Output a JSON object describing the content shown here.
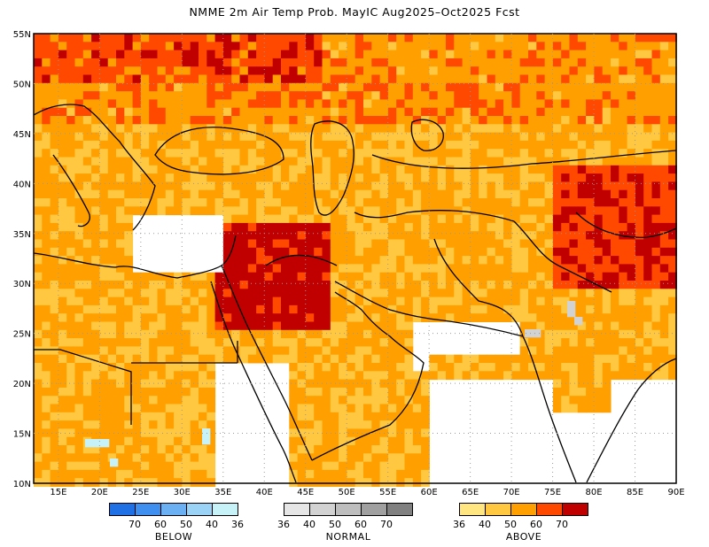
{
  "title": "NMME  2m  Air  Temp  Prob.  MayIC    Aug2025–Oct2025  Fcst",
  "axes": {
    "lon_labels": [
      "15E",
      "20E",
      "25E",
      "30E",
      "35E",
      "40E",
      "45E",
      "50E",
      "55E",
      "60E",
      "65E",
      "70E",
      "75E",
      "80E",
      "85E",
      "90E"
    ],
    "lat_labels": [
      "55N",
      "50N",
      "45N",
      "40N",
      "35N",
      "30N",
      "25N",
      "20N",
      "15N",
      "10N"
    ],
    "lon_range": [
      12,
      90
    ],
    "lat_range": [
      10,
      55
    ]
  },
  "legend": {
    "below": {
      "title": "BELOW",
      "values": [
        "70",
        "60",
        "50",
        "40",
        "36"
      ],
      "colors": [
        "#1f6fe5",
        "#3f8ff0",
        "#6cb0f4",
        "#9bd3f7",
        "#c7f2f7"
      ]
    },
    "normal": {
      "title": "NORMAL",
      "values": [
        "36",
        "40",
        "50",
        "60",
        "70"
      ],
      "colors": [
        "#e6e6e6",
        "#d2d2d2",
        "#bebebe",
        "#a0a0a0",
        "#808080"
      ]
    },
    "above": {
      "title": "ABOVE",
      "values": [
        "36",
        "40",
        "50",
        "60",
        "70"
      ],
      "colors": [
        "#ffe680",
        "#ffc840",
        "#ffa000",
        "#ff4800",
        "#c00000"
      ]
    }
  }
}
